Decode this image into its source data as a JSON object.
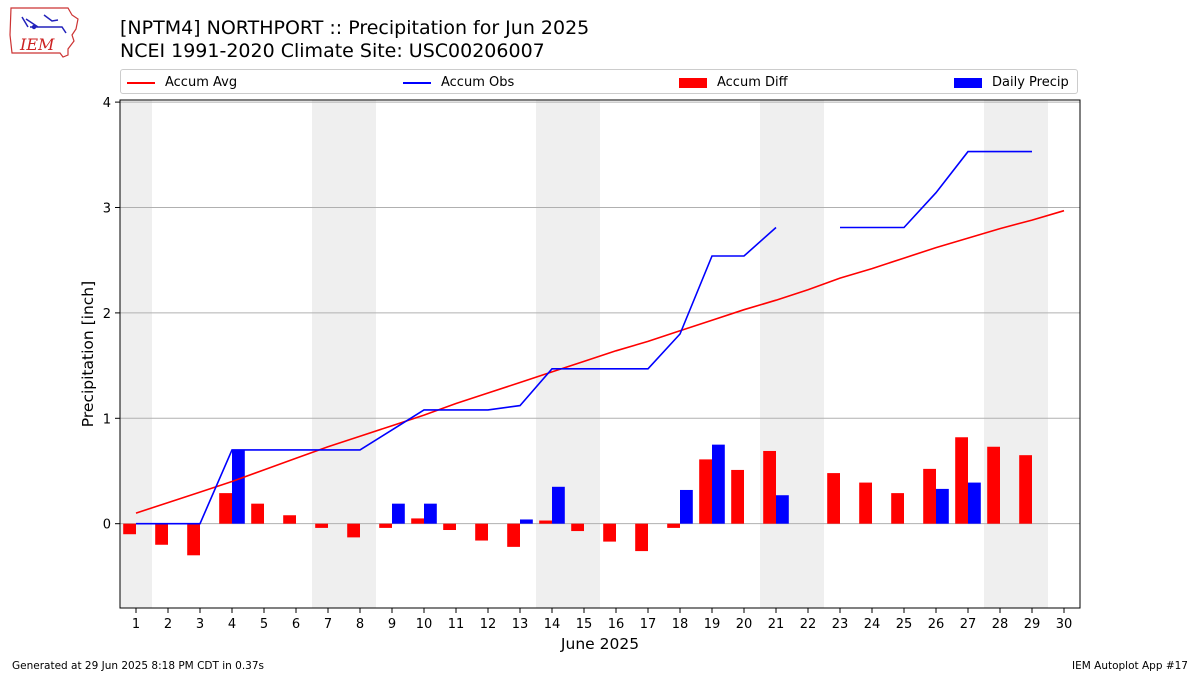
{
  "header": {
    "title_line1": "[NPTM4] NORTHPORT :: Precipitation for Jun 2025",
    "title_line2": "NCEI 1991-2020 Climate Site: USC00206007"
  },
  "logo": {
    "text": "IEM"
  },
  "legend": {
    "items": [
      {
        "label": "Accum Avg",
        "color": "#ff0000",
        "kind": "line"
      },
      {
        "label": "Accum Obs",
        "color": "#0000ff",
        "kind": "line"
      },
      {
        "label": "Accum Diff",
        "color": "#ff0000",
        "kind": "bar"
      },
      {
        "label": "Daily Precip",
        "color": "#0000ff",
        "kind": "bar"
      }
    ]
  },
  "footer": {
    "left": "Generated at 29 Jun 2025 8:18 PM CDT in 0.37s",
    "right": "IEM Autoplot App #17"
  },
  "chart_data": {
    "type": "bar",
    "xlabel": "June 2025",
    "ylabel": "Precipitation [inch]",
    "xlim": [
      0.5,
      30.5
    ],
    "ylim": [
      -0.8,
      4.02
    ],
    "yticks": [
      0,
      1,
      2,
      3,
      4
    ],
    "x": [
      1,
      2,
      3,
      4,
      5,
      6,
      7,
      8,
      9,
      10,
      11,
      12,
      13,
      14,
      15,
      16,
      17,
      18,
      19,
      20,
      21,
      22,
      23,
      24,
      25,
      26,
      27,
      28,
      29,
      30
    ],
    "grid": "horizontal",
    "weekend_shading": [
      [
        0.5,
        1.5
      ],
      [
        6.5,
        8.5
      ],
      [
        13.5,
        15.5
      ],
      [
        20.5,
        22.5
      ],
      [
        27.5,
        29.5
      ]
    ],
    "series": [
      {
        "name": "Accum Avg",
        "type": "line",
        "color": "#ff0000",
        "values": [
          0.1,
          0.2,
          0.3,
          0.4,
          0.51,
          0.62,
          0.73,
          0.83,
          0.93,
          1.03,
          1.14,
          1.24,
          1.34,
          1.44,
          1.54,
          1.64,
          1.73,
          1.83,
          1.93,
          2.03,
          2.12,
          2.22,
          2.33,
          2.42,
          2.52,
          2.62,
          2.71,
          2.8,
          2.88,
          2.97
        ]
      },
      {
        "name": "Accum Obs",
        "type": "line",
        "color": "#0000ff",
        "values": [
          0,
          0,
          0,
          0.7,
          0.7,
          0.7,
          0.7,
          0.7,
          0.89,
          1.08,
          1.08,
          1.08,
          1.12,
          1.47,
          1.47,
          1.47,
          1.47,
          1.8,
          2.54,
          2.54,
          2.81,
          null,
          2.81,
          2.81,
          2.81,
          3.14,
          3.53,
          3.53,
          3.53,
          null
        ]
      },
      {
        "name": "Accum Diff",
        "type": "bar",
        "color": "#ff0000",
        "values": [
          -0.1,
          -0.2,
          -0.3,
          0.29,
          0.19,
          0.08,
          -0.04,
          -0.13,
          -0.04,
          0.05,
          -0.06,
          -0.16,
          -0.22,
          0.03,
          -0.07,
          -0.17,
          -0.26,
          -0.04,
          0.61,
          0.51,
          0.69,
          null,
          0.48,
          0.39,
          0.29,
          0.52,
          0.82,
          0.73,
          0.65,
          null
        ]
      },
      {
        "name": "Daily Precip",
        "type": "bar",
        "color": "#0000ff",
        "values": [
          0,
          0,
          0,
          0.7,
          0,
          0,
          0,
          0,
          0.19,
          0.19,
          0,
          0,
          0.04,
          0.35,
          0,
          0,
          0,
          0.32,
          0.75,
          0,
          0.27,
          null,
          0,
          0,
          0,
          0.33,
          0.39,
          0,
          0,
          null
        ]
      }
    ]
  }
}
